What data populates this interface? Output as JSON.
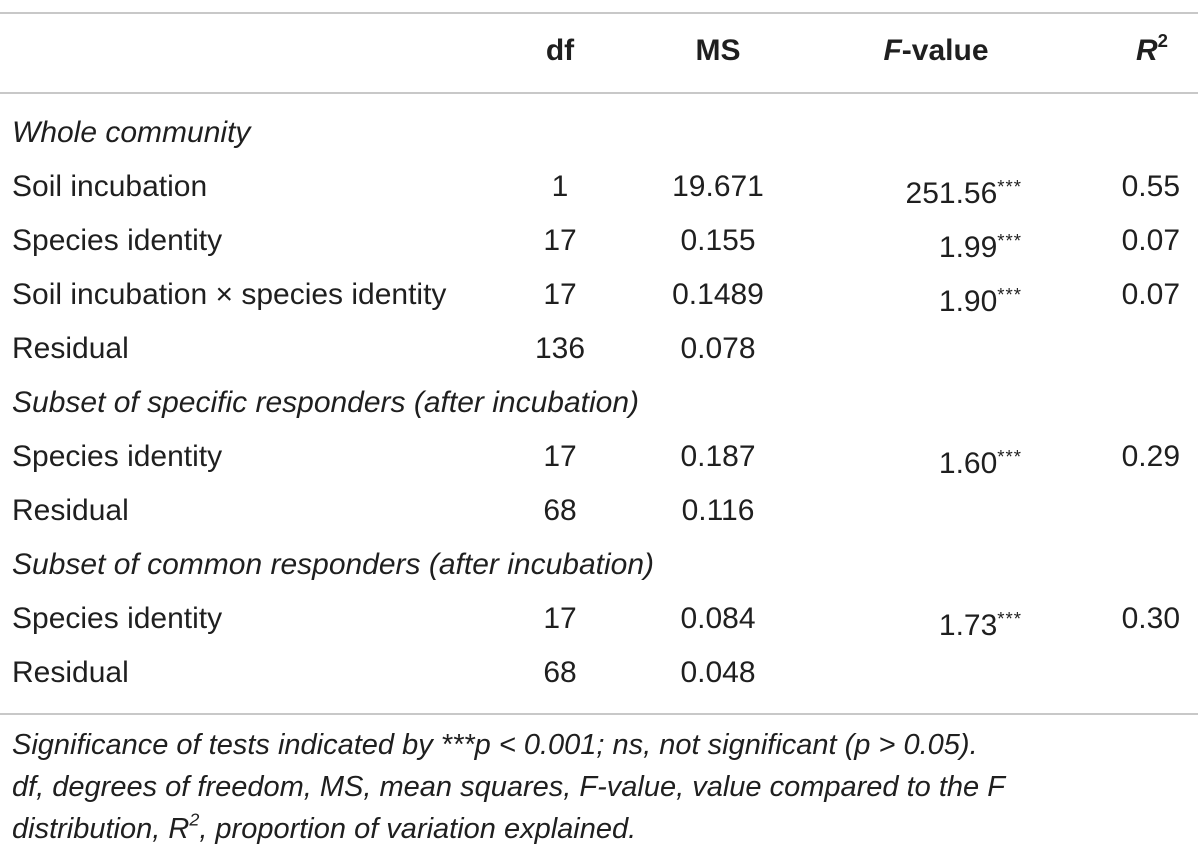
{
  "table": {
    "header": {
      "label": "",
      "df": "df",
      "ms": "MS",
      "f_italic": "F",
      "f_rest": "-value",
      "r2_base": "R",
      "r2_sup": "2"
    },
    "rows": [
      {
        "type": "section",
        "label": "Whole community"
      },
      {
        "type": "data",
        "label": "Soil incubation",
        "df": "1",
        "ms": "19.671",
        "f": "251.56",
        "sig": "***",
        "r2": "0.55"
      },
      {
        "type": "data",
        "label": "Species identity",
        "df": "17",
        "ms": "0.155",
        "f": "1.99",
        "sig": "***",
        "r2": "0.07"
      },
      {
        "type": "data",
        "label": "Soil incubation × species identity",
        "df": "17",
        "ms": "0.1489",
        "f": "1.90",
        "sig": "***",
        "r2": "0.07"
      },
      {
        "type": "data",
        "label": "Residual",
        "df": "136",
        "ms": "0.078",
        "f": "",
        "sig": "",
        "r2": ""
      },
      {
        "type": "section",
        "label": "Subset of specific responders (after incubation)"
      },
      {
        "type": "data",
        "label": "Species identity",
        "df": "17",
        "ms": "0.187",
        "f": "1.60",
        "sig": "***",
        "r2": "0.29"
      },
      {
        "type": "data",
        "label": "Residual",
        "df": "68",
        "ms": "0.116",
        "f": "",
        "sig": "",
        "r2": ""
      },
      {
        "type": "section",
        "label": "Subset of common responders (after incubation)"
      },
      {
        "type": "data",
        "label": "Species identity",
        "df": "17",
        "ms": "0.084",
        "f": "1.73",
        "sig": "***",
        "r2": "0.30"
      },
      {
        "type": "data",
        "label": "Residual",
        "df": "68",
        "ms": "0.048",
        "f": "",
        "sig": "",
        "r2": ""
      }
    ]
  },
  "footnote": {
    "line1": "Significance of tests indicated by ***p < 0.001;  ns, not significant (p > 0.05).",
    "line2": "df, degrees of freedom, MS, mean squares, F-value, value compared to the F",
    "line3_pre": "distribution, R",
    "line3_sup": "2",
    "line3_post": ", proportion of variation explained."
  }
}
